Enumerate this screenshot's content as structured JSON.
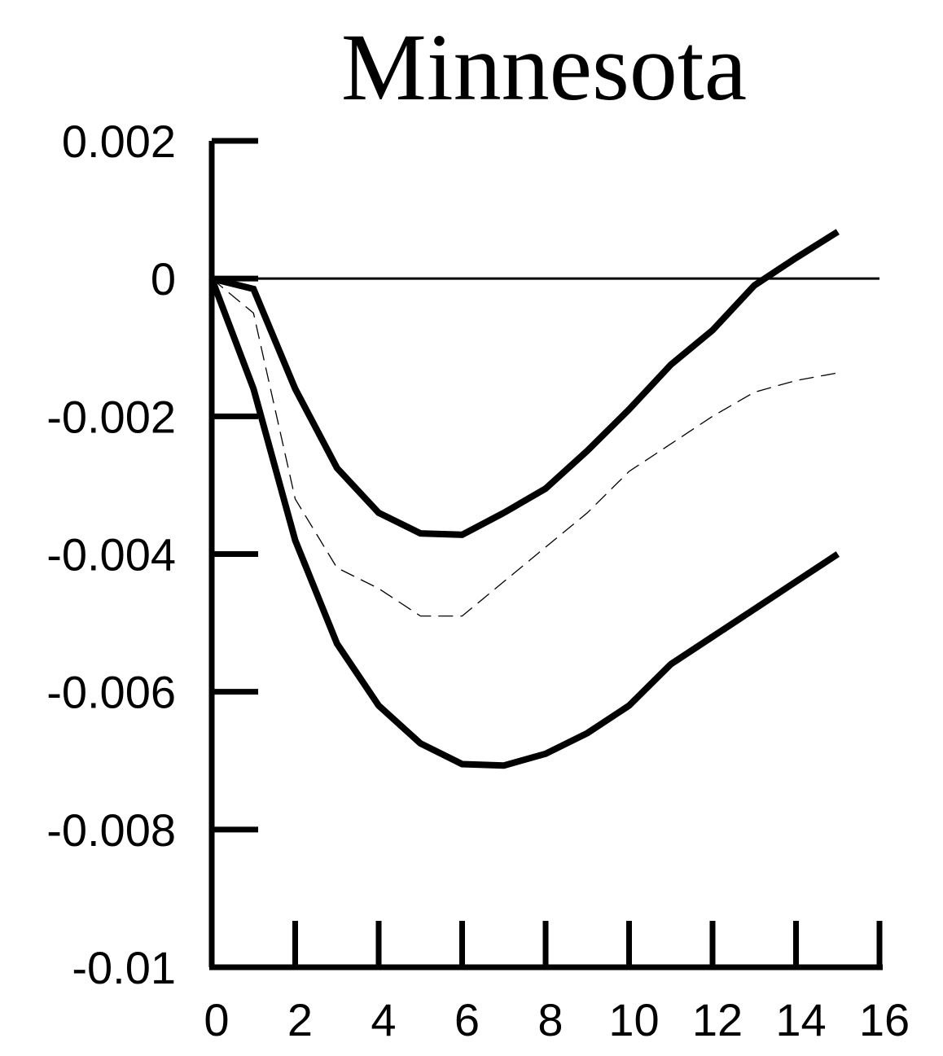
{
  "chart_data": {
    "type": "line",
    "title": "Minnesota",
    "xlabel": "",
    "ylabel": "",
    "xlim": [
      0,
      16
    ],
    "ylim": [
      -0.01,
      0.002
    ],
    "x_ticks": [
      "0",
      "2",
      "4",
      "6",
      "8",
      "10",
      "12",
      "14",
      "16"
    ],
    "y_ticks": [
      "0.002",
      "0",
      "-0.002",
      "-0.004",
      "-0.006",
      "-0.008",
      "-0.01"
    ],
    "grid": false,
    "legend": "none",
    "zero_line": true,
    "x": [
      0,
      1,
      2,
      3,
      4,
      5,
      6,
      7,
      8,
      9,
      10,
      11,
      12,
      13,
      14,
      15
    ],
    "series": [
      {
        "style": "solid-thick",
        "color": "#000000",
        "values": [
          0,
          -0.00015,
          -0.0016,
          -0.00275,
          -0.0034,
          -0.0037,
          -0.00372,
          -0.0034,
          -0.00305,
          -0.0025,
          -0.0019,
          -0.00125,
          -0.00075,
          -0.0001,
          0.0003,
          0.00068
        ]
      },
      {
        "style": "dashed-thin",
        "color": "#000000",
        "values": [
          0,
          -0.0005,
          -0.0032,
          -0.0042,
          -0.0045,
          -0.0049,
          -0.0049,
          -0.0044,
          -0.0039,
          -0.0034,
          -0.0028,
          -0.0024,
          -0.002,
          -0.00165,
          -0.00148,
          -0.00137
        ]
      },
      {
        "style": "solid-thick",
        "color": "#000000",
        "values": [
          0,
          -0.0016,
          -0.0038,
          -0.0053,
          -0.0062,
          -0.00675,
          -0.00705,
          -0.00707,
          -0.0069,
          -0.0066,
          -0.0062,
          -0.0056,
          -0.0052,
          -0.0048,
          -0.0044,
          -0.004
        ]
      }
    ]
  }
}
